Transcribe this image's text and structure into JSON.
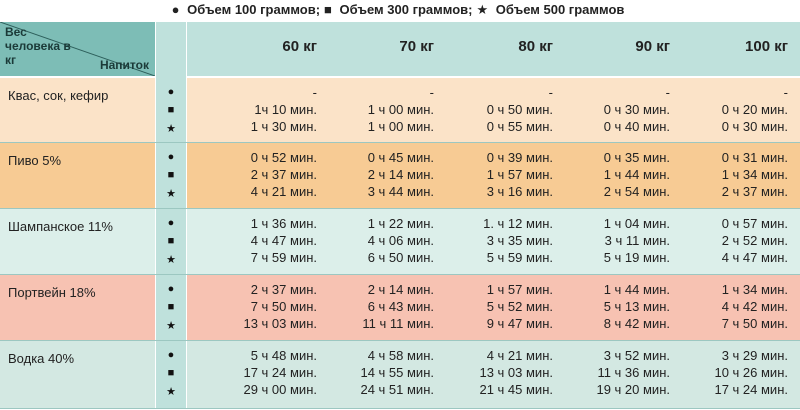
{
  "legend": [
    {
      "symbol": "●",
      "label": "Объем 100 граммов;"
    },
    {
      "symbol": "■",
      "label": "Объем 300 граммов;"
    },
    {
      "symbol": "★",
      "label": "Объем 500 граммов"
    }
  ],
  "header": {
    "corner_top": "Вес человека в кг",
    "corner_bottom": "Напиток",
    "columns": [
      "60 кг",
      "70 кг",
      "80 кг",
      "90 кг",
      "100 кг"
    ]
  },
  "rows": [
    {
      "drink": "Квас, сок, кефир",
      "color": "#fbe3c8",
      "cells": [
        [
          "-",
          "1ч 10 мин.",
          "1 ч 30 мин."
        ],
        [
          "-",
          "1 ч 00 мин.",
          "1 ч 00 мин."
        ],
        [
          "-",
          "0 ч 50 мин.",
          "0 ч 55 мин."
        ],
        [
          "-",
          "0 ч 30 мин.",
          "0 ч 40 мин."
        ],
        [
          "-",
          "0 ч 20 мин.",
          "0 ч 30 мин."
        ]
      ]
    },
    {
      "drink": "Пиво 5%",
      "color": "#f7cb94",
      "cells": [
        [
          "0 ч 52 мин.",
          "2 ч 37 мин.",
          "4 ч 21 мин."
        ],
        [
          "0 ч 45 мин.",
          "2 ч 14 мин.",
          "3 ч 44 мин."
        ],
        [
          "0 ч 39 мин.",
          "1 ч 57 мин.",
          "3 ч 16 мин."
        ],
        [
          "0 ч 35 мин.",
          "1 ч 44 мин.",
          "2 ч 54 мин."
        ],
        [
          "0 ч 31 мин.",
          "1 ч 34 мин.",
          "2 ч 37 мин."
        ]
      ]
    },
    {
      "drink": "Шампанское 11%",
      "color": "#dcefea",
      "cells": [
        [
          "1 ч 36 мин.",
          "4 ч 47 мин.",
          "7 ч 59 мин."
        ],
        [
          "1 ч 22 мин.",
          "4 ч 06 мин.",
          "6 ч 50 мин."
        ],
        [
          "1. ч 12 мин.",
          "3 ч 35 мин.",
          "5 ч 59 мин."
        ],
        [
          "1 ч 04 мин.",
          "3 ч 11 мин.",
          "5 ч 19 мин."
        ],
        [
          "0 ч 57 мин.",
          "2 ч 52 мин.",
          "4 ч 47 мин."
        ]
      ]
    },
    {
      "drink": "Портвейн 18%",
      "color": "#f7c2b2",
      "cells": [
        [
          "2 ч 37 мин.",
          "7 ч 50 мин.",
          "13 ч 03 мин."
        ],
        [
          "2 ч 14 мин.",
          "6 ч 43 мин.",
          "11 ч 11 мин."
        ],
        [
          "1 ч 57 мин.",
          "5 ч 52 мин.",
          "9 ч 47 мин."
        ],
        [
          "1 ч 44 мин.",
          "5 ч 13 мин.",
          "8 ч 42 мин."
        ],
        [
          "1 ч 34 мин.",
          "4 ч 42 мин.",
          "7 ч 50 мин."
        ]
      ]
    },
    {
      "drink": "Водка 40%",
      "color": "#d3e8e2",
      "cells": [
        [
          "5 ч 48 мин.",
          "17 ч 24 мин.",
          "29 ч 00 мин."
        ],
        [
          "4 ч 58 мин.",
          "14 ч 55 мин.",
          "24 ч 51 мин."
        ],
        [
          "4 ч 21 мин.",
          "13 ч 03 мин.",
          "21 ч 45 мин."
        ],
        [
          "3 ч 52 мин.",
          "11 ч 36 мин.",
          "19 ч 20 мин."
        ],
        [
          "3 ч 29 мин.",
          "10 ч 26 мин.",
          "17 ч 24 мин."
        ]
      ]
    }
  ]
}
